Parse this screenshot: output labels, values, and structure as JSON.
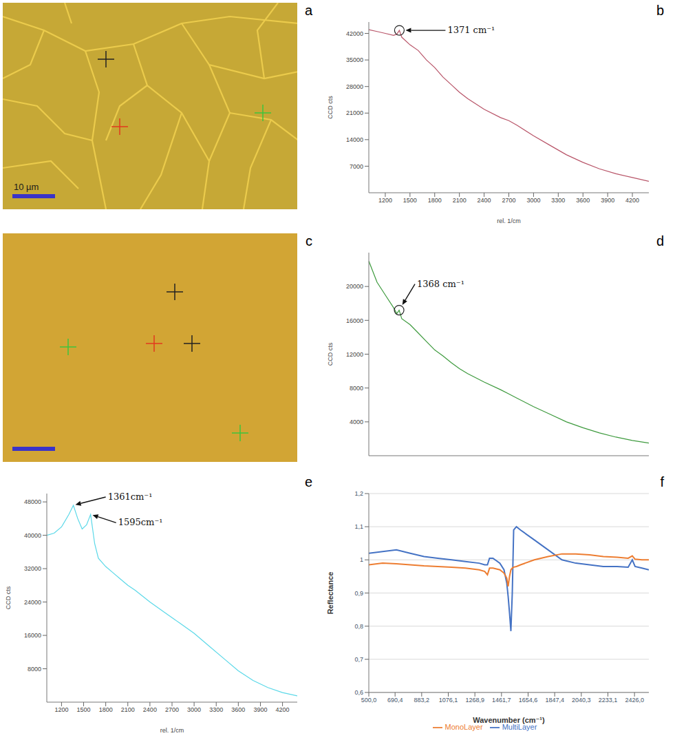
{
  "chart_data": [
    {
      "panel": "b",
      "type": "line",
      "color": "#b85468",
      "x": [
        1000,
        1100,
        1200,
        1300,
        1340,
        1371,
        1400,
        1500,
        1600,
        1700,
        1800,
        1900,
        2000,
        2100,
        2200,
        2400,
        2600,
        2700,
        2800,
        3000,
        3200,
        3400,
        3600,
        3800,
        4000,
        4200,
        4400
      ],
      "values": [
        43000,
        42500,
        42000,
        41500,
        41800,
        42800,
        41000,
        39000,
        37500,
        35000,
        33000,
        30500,
        28500,
        26500,
        24800,
        22000,
        19800,
        19000,
        17800,
        15000,
        12500,
        10000,
        8000,
        6300,
        5000,
        4000,
        3000
      ],
      "xlim": [
        1000,
        4400
      ],
      "xticks": [
        1200,
        1500,
        1800,
        2100,
        2400,
        2700,
        3000,
        3300,
        3600,
        3900,
        4200
      ],
      "ylim": [
        0,
        45000
      ],
      "yticks": [
        7000,
        14000,
        21000,
        28000,
        35000,
        42000
      ],
      "x_label": "rel. 1/cm",
      "y_label": "CCD cts",
      "annotations": [
        {
          "text": "1371 cm⁻¹",
          "x": 1371,
          "y": 42800
        }
      ]
    },
    {
      "panel": "d",
      "type": "line",
      "color": "#3d9a3d",
      "x": [
        1000,
        1100,
        1200,
        1300,
        1340,
        1368,
        1400,
        1500,
        1600,
        1700,
        1800,
        1900,
        2000,
        2100,
        2200,
        2400,
        2600,
        2700,
        2800,
        3000,
        3200,
        3400,
        3600,
        3800,
        4000,
        4200,
        4400
      ],
      "values": [
        23000,
        20500,
        19000,
        17500,
        16800,
        17200,
        16200,
        15500,
        14500,
        13500,
        12500,
        11800,
        11000,
        10300,
        9700,
        8700,
        7800,
        7300,
        6800,
        5800,
        4900,
        4000,
        3300,
        2700,
        2200,
        1800,
        1500
      ],
      "xlim": [
        1000,
        4400
      ],
      "ylim": [
        0,
        24000
      ],
      "yticks": [
        4000,
        8000,
        12000,
        16000,
        20000
      ],
      "tick_labels": "y",
      "y_label": "CCD cts",
      "annotations": [
        {
          "text": "1368 cm⁻¹",
          "x": 1368,
          "y": 17200
        }
      ]
    },
    {
      "panel": "e",
      "type": "line",
      "color": "#5ad8e8",
      "x": [
        1000,
        1100,
        1200,
        1300,
        1361,
        1420,
        1480,
        1540,
        1595,
        1650,
        1700,
        1800,
        1900,
        2000,
        2100,
        2200,
        2400,
        2600,
        2800,
        3000,
        3200,
        3400,
        3600,
        3800,
        4000,
        4200,
        4400
      ],
      "values": [
        40000,
        40500,
        42000,
        45000,
        47200,
        44000,
        41500,
        42500,
        45000,
        38000,
        34500,
        32500,
        31000,
        29500,
        28000,
        26800,
        24000,
        21500,
        19000,
        16500,
        13500,
        10500,
        7500,
        5200,
        3500,
        2300,
        1500
      ],
      "xlim": [
        1000,
        4400
      ],
      "xticks": [
        1200,
        1500,
        1800,
        2100,
        2400,
        2700,
        3000,
        3300,
        3600,
        3900,
        4200
      ],
      "ylim": [
        0,
        50000
      ],
      "yticks": [
        8000,
        16000,
        24000,
        32000,
        40000,
        48000
      ],
      "x_label": "rel. 1/cm",
      "y_label": "CCD cts",
      "annotations": [
        {
          "text": "1361cm⁻¹",
          "x": 1361,
          "y": 47200
        },
        {
          "text": "1595cm⁻¹",
          "x": 1595,
          "y": 45000
        }
      ]
    },
    {
      "panel": "f",
      "type": "line",
      "x": [
        500,
        600,
        700,
        800,
        900,
        1000,
        1100,
        1200,
        1300,
        1340,
        1360,
        1375,
        1400,
        1450,
        1480,
        1500,
        1510,
        1520,
        1530,
        1540,
        1550,
        1570,
        1600,
        1700,
        1800,
        1900,
        2000,
        2100,
        2200,
        2300,
        2380,
        2410,
        2430,
        2480,
        2530
      ],
      "series": [
        {
          "name": "MultiLayer",
          "color": "#4472c4",
          "values": [
            1.02,
            1.025,
            1.03,
            1.02,
            1.01,
            1.005,
            1.0,
            0.995,
            0.99,
            0.985,
            0.985,
            1.005,
            1.005,
            0.99,
            0.97,
            0.93,
            0.89,
            0.84,
            0.785,
            0.9,
            1.09,
            1.1,
            1.09,
            1.06,
            1.03,
            1.0,
            0.99,
            0.985,
            0.98,
            0.98,
            0.978,
            1.0,
            0.98,
            0.975,
            0.97
          ]
        },
        {
          "name": "MonoLayer",
          "color": "#ed7d31",
          "values": [
            0.985,
            0.99,
            0.988,
            0.985,
            0.982,
            0.98,
            0.978,
            0.975,
            0.97,
            0.965,
            0.955,
            0.975,
            0.975,
            0.97,
            0.96,
            0.945,
            0.92,
            0.95,
            0.97,
            0.975,
            0.978,
            0.98,
            0.985,
            1.0,
            1.01,
            1.018,
            1.018,
            1.015,
            1.01,
            1.008,
            1.005,
            1.012,
            1.002,
            1.0,
            1.0
          ]
        }
      ],
      "xlim": [
        500,
        2530
      ],
      "xticks": [
        {
          "value": 500,
          "label": "500,0"
        },
        {
          "value": 690.4,
          "label": "690,4"
        },
        {
          "value": 883.2,
          "label": "883,2"
        },
        {
          "value": 1076.1,
          "label": "1076,1"
        },
        {
          "value": 1268.9,
          "label": "1268,9"
        },
        {
          "value": 1461.7,
          "label": "1461,7"
        },
        {
          "value": 1654.6,
          "label": "1654,6"
        },
        {
          "value": 1847.4,
          "label": "1847,4"
        },
        {
          "value": 2040.3,
          "label": "2040,3"
        },
        {
          "value": 2233.1,
          "label": "2233,1"
        },
        {
          "value": 2426.0,
          "label": "2426,0"
        }
      ],
      "ylim": [
        0.6,
        1.2
      ],
      "yticks": [
        {
          "value": 0.6,
          "label": "0,6"
        },
        {
          "value": 0.7,
          "label": "0,7"
        },
        {
          "value": 0.8,
          "label": "0,8"
        },
        {
          "value": 0.9,
          "label": "0,9"
        },
        1,
        {
          "value": 1.1,
          "label": "1,1"
        },
        {
          "value": 1.2,
          "label": "1,2"
        }
      ],
      "x_label": "Wavenumber (cm⁻¹)",
      "y_label": "Reflectance",
      "grid": true,
      "legend": "bottom"
    }
  ],
  "images": [
    {
      "panel": "a",
      "scale_bar_label": "10 µm"
    },
    {
      "panel": "c"
    }
  ]
}
